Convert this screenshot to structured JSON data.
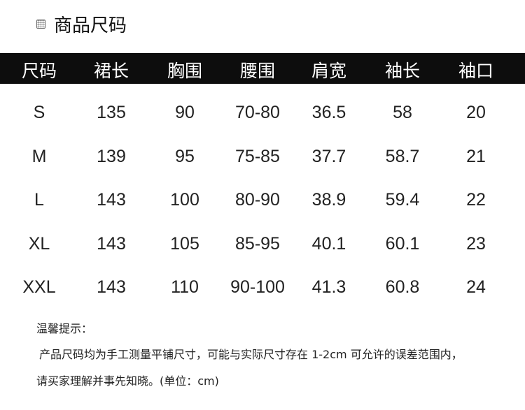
{
  "title": "商品尺码",
  "table": {
    "headers": [
      "尺码",
      "裙长",
      "胸围",
      "腰围",
      "肩宽",
      "袖长",
      "袖口"
    ],
    "rows": [
      [
        "S",
        "135",
        "90",
        "70-80",
        "36.5",
        "58",
        "20"
      ],
      [
        "M",
        "139",
        "95",
        "75-85",
        "37.7",
        "58.7",
        "21"
      ],
      [
        "L",
        "143",
        "100",
        "80-90",
        "38.9",
        "59.4",
        "22"
      ],
      [
        "XL",
        "143",
        "105",
        "85-95",
        "40.1",
        "60.1",
        "23"
      ],
      [
        "XXL",
        "143",
        "110",
        "90-100",
        "41.3",
        "60.8",
        "24"
      ]
    ]
  },
  "notes": {
    "heading": "温馨提示：",
    "line1": "产品尺码均为手工测量平铺尺寸，可能与实际尺寸存在 1-2cm 可允许的误差范围内，",
    "line2": "请买家理解并事先知晓。(单位：cm)"
  },
  "colors": {
    "header_bg": "#0d0d0d",
    "header_text": "#ffffff"
  }
}
